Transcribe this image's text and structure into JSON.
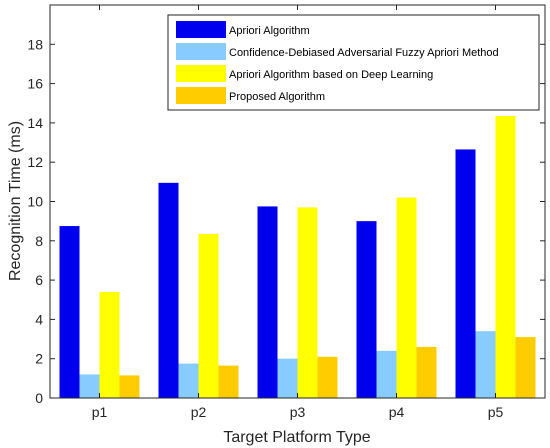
{
  "chart_data": {
    "type": "bar",
    "title": "",
    "xlabel": "Target Platform Type",
    "ylabel": "Recognition Time (ms)",
    "categories": [
      "p1",
      "p2",
      "p3",
      "p4",
      "p5"
    ],
    "ylim": [
      0,
      20
    ],
    "yticks": [
      0,
      2,
      4,
      6,
      8,
      10,
      12,
      14,
      16,
      18
    ],
    "grid": false,
    "legend_position": "top-right",
    "series": [
      {
        "name": "Apriori Algorithm",
        "color": "#0000ee",
        "values": [
          8.75,
          10.95,
          9.75,
          9.0,
          12.65
        ]
      },
      {
        "name": "Confidence-Debiased Adversarial Fuzzy Apriori Method",
        "color": "#88ccff",
        "values": [
          1.2,
          1.75,
          2.0,
          2.4,
          3.4
        ]
      },
      {
        "name": "Apriori Algorithm based on Deep Learning",
        "color": "#ffff00",
        "values": [
          5.4,
          8.35,
          9.7,
          10.2,
          14.35
        ]
      },
      {
        "name": "Proposed Algorithm",
        "color": "#ffcc00",
        "values": [
          1.15,
          1.65,
          2.1,
          2.6,
          3.1
        ]
      }
    ]
  }
}
